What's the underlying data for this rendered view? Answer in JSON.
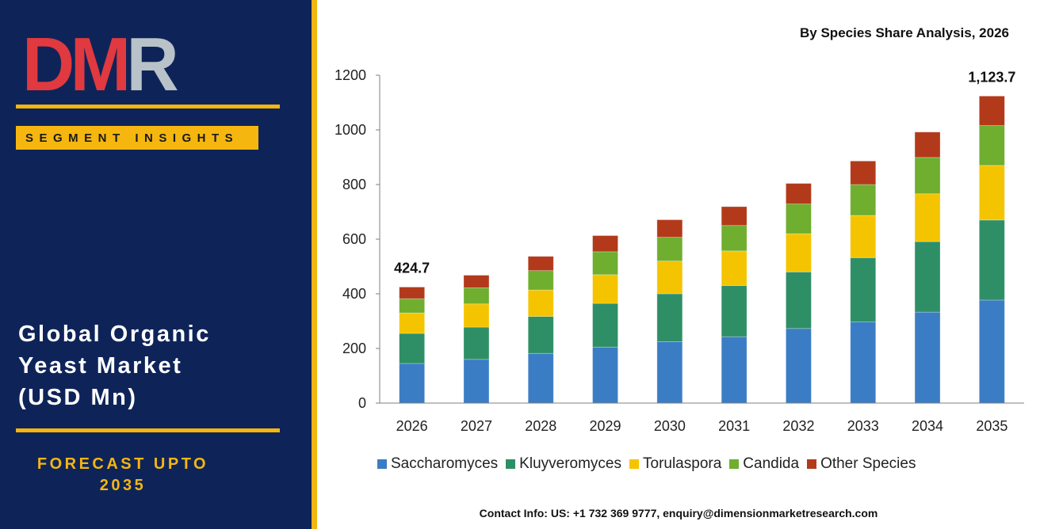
{
  "brand": {
    "logo_text": "DMR"
  },
  "left_panel": {
    "badge": "SEGMENT INSIGHTS",
    "title_lines": [
      "Global Organic",
      "Yeast Market",
      "(USD Mn)"
    ],
    "forecast_lines": [
      "FORECAST UPTO",
      "2035"
    ]
  },
  "colors": {
    "panel_bg": "#0e2459",
    "accent": "#f5b60f",
    "logo_red": "#e0393f",
    "logo_grey": "#b8c2c8"
  },
  "chart_data": {
    "type": "bar",
    "stacked": true,
    "title": "By Species Share Analysis, 2026",
    "categories": [
      "2026",
      "2027",
      "2028",
      "2029",
      "2030",
      "2031",
      "2032",
      "2033",
      "2034",
      "2035"
    ],
    "ylim": [
      0,
      1200
    ],
    "yticks": [
      0,
      200,
      400,
      600,
      800,
      1000,
      1200
    ],
    "series": [
      {
        "name": "Saccharomyces",
        "color": "#3b7dc4",
        "values": [
          145,
          160,
          182,
          205,
          225,
          243,
          273,
          297,
          333,
          377
        ]
      },
      {
        "name": "Kluyveromyces",
        "color": "#2e8f66",
        "values": [
          110,
          118,
          135,
          160,
          175,
          187,
          207,
          235,
          258,
          293
        ]
      },
      {
        "name": "Torulaspora",
        "color": "#f5c400",
        "values": [
          75,
          85,
          97,
          105,
          120,
          127,
          140,
          155,
          175,
          200
        ]
      },
      {
        "name": "Candida",
        "color": "#6fae2e",
        "values": [
          52,
          59,
          71,
          84,
          87,
          93,
          109,
          113,
          133,
          146
        ]
      },
      {
        "name": "Other Species",
        "color": "#b23a1b",
        "values": [
          42.7,
          46,
          52,
          59,
          64,
          69,
          75,
          86,
          93,
          107.7
        ]
      }
    ],
    "data_labels": [
      {
        "category": "2026",
        "text": "424.7"
      },
      {
        "category": "2035",
        "text": "1,123.7"
      }
    ],
    "legend_position": "bottom",
    "grid": false
  },
  "footer": {
    "contact": "Contact Info: US: +1 732 369 9777, enquiry@dimensionmarketresearch.com"
  }
}
